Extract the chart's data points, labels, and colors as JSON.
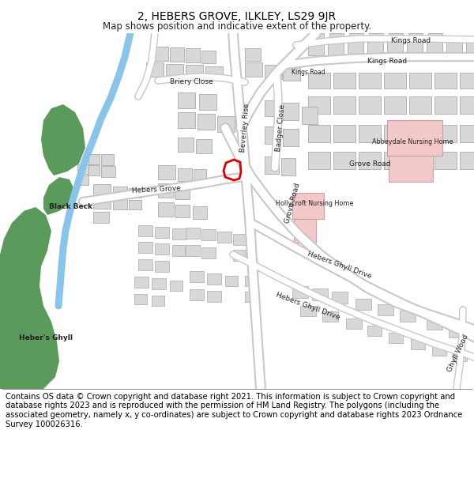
{
  "title": "2, HEBERS GROVE, ILKLEY, LS29 9JR",
  "subtitle": "Map shows position and indicative extent of the property.",
  "footer": "Contains OS data © Crown copyright and database right 2021. This information is subject to Crown copyright and database rights 2023 and is reproduced with the permission of HM Land Registry. The polygons (including the associated geometry, namely x, y co-ordinates) are subject to Crown copyright and database rights 2023 Ordnance Survey 100026316.",
  "bg_color": "#ffffff",
  "map_bg": "#f0f0f0",
  "building_color": "#d8d8d8",
  "building_edge": "#aaaaaa",
  "green_color": "#5a9a5a",
  "water_color": "#89c4ea",
  "road_color": "#ffffff",
  "road_edge": "#c8c8c8",
  "pink_building_color": "#f2c8c8",
  "red_outline_color": "#dd0000",
  "title_fontsize": 10,
  "subtitle_fontsize": 8.5,
  "footer_fontsize": 7.2
}
